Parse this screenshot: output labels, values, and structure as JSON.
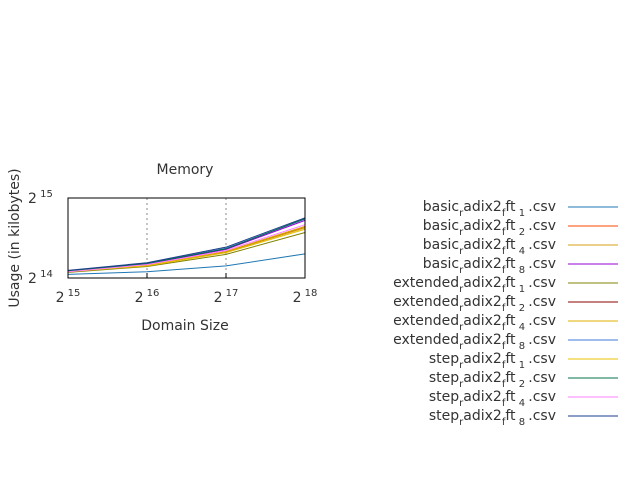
{
  "chart_data": {
    "type": "line",
    "title": "Memory",
    "xlabel": "Domain Size",
    "ylabel": "Usage (in kilobytes)",
    "x_scale": "log2",
    "y_scale": "log2",
    "x": [
      32768,
      65536,
      131072,
      262144
    ],
    "xlim": [
      32768,
      262144
    ],
    "ylim": [
      16384,
      32768
    ],
    "x_ticks": [
      {
        "value": 32768,
        "base": "2",
        "exp": "15"
      },
      {
        "value": 65536,
        "base": "2",
        "exp": "16"
      },
      {
        "value": 131072,
        "base": "2",
        "exp": "17"
      },
      {
        "value": 262144,
        "base": "2",
        "exp": "18"
      }
    ],
    "y_ticks": [
      {
        "value": 16384,
        "base": "2",
        "exp": "14"
      },
      {
        "value": 32768,
        "base": "2",
        "exp": "15"
      }
    ],
    "x_grid": true,
    "y_grid": false,
    "legend_position": "right",
    "series": [
      {
        "name_parts": [
          "basic",
          "r",
          "adix2",
          "f",
          "ft",
          "1",
          ".csv"
        ],
        "color": "#1f77b4",
        "values": [
          16900,
          17300,
          18200,
          20200
        ]
      },
      {
        "name_parts": [
          "basic",
          "r",
          "adix2",
          "f",
          "ft",
          "2",
          ".csv"
        ],
        "color": "#ff4500",
        "values": [
          17300,
          18300,
          20500,
          25500
        ]
      },
      {
        "name_parts": [
          "basic",
          "r",
          "adix2",
          "f",
          "ft",
          "4",
          ".csv"
        ],
        "color": "#d4a017",
        "values": [
          17300,
          18200,
          20500,
          25300
        ]
      },
      {
        "name_parts": [
          "basic",
          "r",
          "adix2",
          "f",
          "ft",
          "8",
          ".csv"
        ],
        "color": "#9400d3",
        "values": [
          17400,
          18500,
          21000,
          27000
        ]
      },
      {
        "name_parts": [
          "extended",
          "r",
          "adix2",
          "f",
          "ft",
          "1",
          ".csv"
        ],
        "color": "#808000",
        "values": [
          17200,
          18100,
          20100,
          24300
        ]
      },
      {
        "name_parts": [
          "extended",
          "r",
          "adix2",
          "f",
          "ft",
          "2",
          ".csv"
        ],
        "color": "#8b0000",
        "values": [
          17300,
          18300,
          20600,
          25600
        ]
      },
      {
        "name_parts": [
          "extended",
          "r",
          "adix2",
          "f",
          "ft",
          "4",
          ".csv"
        ],
        "color": "#e0b000",
        "values": [
          17300,
          18300,
          20600,
          25600
        ]
      },
      {
        "name_parts": [
          "extended",
          "r",
          "adix2",
          "f",
          "ft",
          "8",
          ".csv"
        ],
        "color": "#3c78d8",
        "values": [
          17400,
          18600,
          21200,
          27300
        ]
      },
      {
        "name_parts": [
          "step",
          "r",
          "adix2",
          "f",
          "ft",
          "1",
          ".csv"
        ],
        "color": "#e8c000",
        "values": [
          17300,
          18200,
          20400,
          25000
        ]
      },
      {
        "name_parts": [
          "step",
          "r",
          "adix2",
          "f",
          "ft",
          "2",
          ".csv"
        ],
        "color": "#00704a",
        "values": [
          17400,
          18600,
          21100,
          27400
        ]
      },
      {
        "name_parts": [
          "step",
          "r",
          "adix2",
          "f",
          "ft",
          "4",
          ".csv"
        ],
        "color": "#ff80ff",
        "values": [
          17300,
          18400,
          20800,
          26000
        ]
      },
      {
        "name_parts": [
          "step",
          "r",
          "adix2",
          "f",
          "ft",
          "8",
          ".csv"
        ],
        "color": "#1a3e8c",
        "values": [
          17500,
          18700,
          21400,
          27600
        ]
      }
    ]
  }
}
